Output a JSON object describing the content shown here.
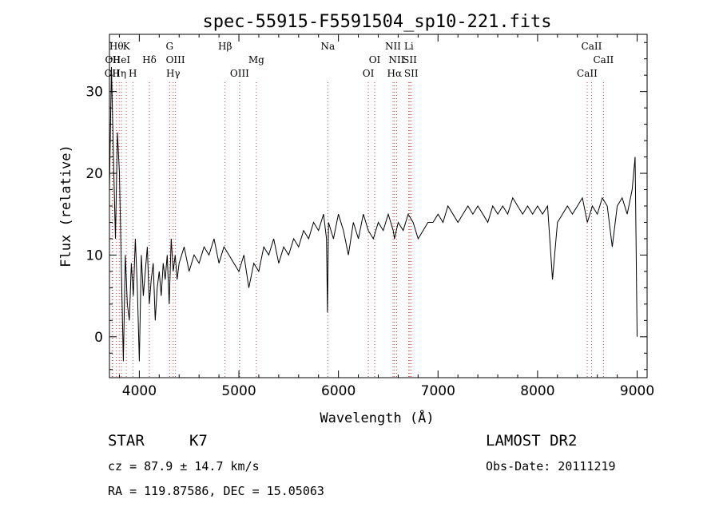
{
  "chart_data": {
    "type": "line",
    "title": "spec-55915-F5591504_sp10-221.fits",
    "xlabel": "Wavelength (Å)",
    "ylabel": "Flux (relative)",
    "xlim": [
      3700,
      9100
    ],
    "ylim": [
      -5,
      37
    ],
    "xticks": [
      4000,
      5000,
      6000,
      7000,
      8000,
      9000
    ],
    "yticks": [
      0,
      10,
      20,
      30
    ],
    "grid": false,
    "series": [
      {
        "x": [
          3700,
          3720,
          3740,
          3760,
          3780,
          3800,
          3820,
          3840,
          3860,
          3880,
          3900,
          3920,
          3940,
          3960,
          3980,
          4000,
          4020,
          4040,
          4060,
          4080,
          4100,
          4120,
          4140,
          4160,
          4180,
          4200,
          4220,
          4240,
          4260,
          4280,
          4300,
          4320,
          4340,
          4360,
          4380,
          4400,
          4450,
          4500,
          4550,
          4600,
          4650,
          4700,
          4750,
          4800,
          4850,
          4900,
          4950,
          5000,
          5050,
          5100,
          5150,
          5200,
          5250,
          5300,
          5350,
          5400,
          5450,
          5500,
          5550,
          5600,
          5650,
          5700,
          5750,
          5800,
          5850,
          5880,
          5890,
          5900,
          5950,
          6000,
          6050,
          6100,
          6150,
          6200,
          6250,
          6300,
          6350,
          6400,
          6450,
          6500,
          6550,
          6563,
          6600,
          6650,
          6700,
          6750,
          6800,
          6850,
          6900,
          6950,
          7000,
          7050,
          7100,
          7150,
          7200,
          7250,
          7300,
          7350,
          7400,
          7450,
          7500,
          7550,
          7600,
          7650,
          7700,
          7750,
          7800,
          7850,
          7900,
          7950,
          8000,
          8050,
          8100,
          8150,
          8200,
          8250,
          8300,
          8350,
          8400,
          8450,
          8500,
          8550,
          8600,
          8650,
          8700,
          8750,
          8800,
          8850,
          8900,
          8950,
          8980,
          9000
        ],
        "y": [
          18,
          33,
          22,
          12,
          25,
          20,
          8,
          -3,
          10,
          4,
          2,
          9,
          5,
          12,
          6,
          -3,
          10,
          5,
          8,
          11,
          4,
          7,
          9,
          2,
          6,
          8,
          5,
          9,
          7,
          10,
          4,
          12,
          8,
          10,
          7,
          9,
          11,
          8,
          10,
          9,
          11,
          10,
          12,
          9,
          11,
          10,
          9,
          8,
          10,
          6,
          9,
          8,
          11,
          10,
          12,
          9,
          11,
          10,
          12,
          11,
          13,
          12,
          14,
          13,
          15,
          12,
          3,
          14,
          12,
          15,
          13,
          10,
          14,
          12,
          15,
          13,
          12,
          14,
          13,
          15,
          13,
          12,
          14,
          13,
          15,
          14,
          12,
          13,
          14,
          14,
          15,
          14,
          16,
          15,
          14,
          15,
          16,
          15,
          16,
          15,
          14,
          16,
          15,
          16,
          15,
          17,
          16,
          15,
          16,
          15,
          16,
          15,
          16,
          7,
          14,
          15,
          16,
          15,
          16,
          17,
          14,
          16,
          15,
          17,
          16,
          11,
          16,
          17,
          15,
          18,
          22,
          0
        ]
      }
    ],
    "line_markers": [
      {
        "wavelength": 3727,
        "label": "OII",
        "row": 3
      },
      {
        "wavelength": 3733,
        "label": "OII",
        "row": 2
      },
      {
        "wavelength": 3770,
        "label": "Hθ",
        "row": 1
      },
      {
        "wavelength": 3798,
        "label": "Hη",
        "row": 3
      },
      {
        "wavelength": 3820,
        "label": "HeI",
        "row": 2
      },
      {
        "wavelength": 3870,
        "label": "K",
        "row": 1
      },
      {
        "wavelength": 3935,
        "label": "H",
        "row": 3
      },
      {
        "wavelength": 4101,
        "label": "Hδ",
        "row": 2
      },
      {
        "wavelength": 4304,
        "label": "G",
        "row": 1
      },
      {
        "wavelength": 4340,
        "label": "Hγ",
        "row": 3
      },
      {
        "wavelength": 4363,
        "label": "OIII",
        "row": 2
      },
      {
        "wavelength": 4861,
        "label": "Hβ",
        "row": 1
      },
      {
        "wavelength": 5007,
        "label": "OIII",
        "row": 3
      },
      {
        "wavelength": 5175,
        "label": "Mg",
        "row": 2
      },
      {
        "wavelength": 5893,
        "label": "Na",
        "row": 1
      },
      {
        "wavelength": 6300,
        "label": "OI",
        "row": 3
      },
      {
        "wavelength": 6364,
        "label": "OI",
        "row": 2
      },
      {
        "wavelength": 6548,
        "label": "NII",
        "row": 1
      },
      {
        "wavelength": 6563,
        "label": "Hα",
        "row": 3
      },
      {
        "wavelength": 6584,
        "label": "NII",
        "row": 2
      },
      {
        "wavelength": 6707,
        "label": "Li",
        "row": 1
      },
      {
        "wavelength": 6717,
        "label": "SII",
        "row": 2
      },
      {
        "wavelength": 6731,
        "label": "SII",
        "row": 3
      },
      {
        "wavelength": 8498,
        "label": "CaII",
        "row": 3
      },
      {
        "wavelength": 8542,
        "label": "CaII",
        "row": 1
      },
      {
        "wavelength": 8662,
        "label": "CaII",
        "row": 2
      }
    ]
  },
  "info": {
    "class": "STAR",
    "subclass": "K7",
    "cz": "cz = 87.9 ± 14.7 km/s",
    "survey": "LAMOST DR2",
    "obs_date": "Obs-Date: 20111219",
    "coords": "RA = 119.87586, DEC =  15.05063"
  }
}
